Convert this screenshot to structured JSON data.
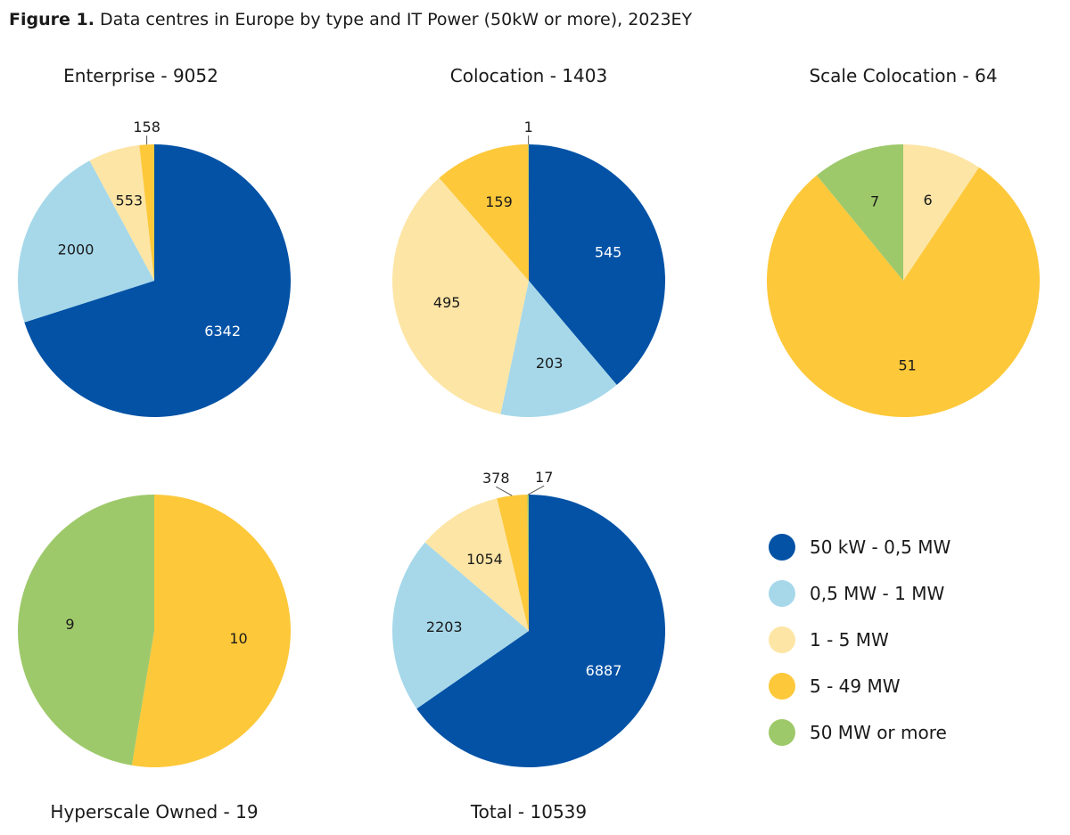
{
  "figure": {
    "number": "Figure 1.",
    "title": "Data centres in Europe by type and IT Power (50kW or more), 2023EY"
  },
  "legend": [
    {
      "label": "50 kW - 0,5 MW",
      "color": "#0352a6"
    },
    {
      "label": "0,5 MW - 1 MW",
      "color": "#a6d8ea"
    },
    {
      "label": "1 - 5 MW",
      "color": "#fde5a5"
    },
    {
      "label": "5 - 49 MW",
      "color": "#fdc83a"
    },
    {
      "label": "50 MW or more",
      "color": "#9ec96b"
    }
  ],
  "chart_data": [
    {
      "type": "pie",
      "title": "Enterprise - 9052",
      "categories": [
        "50 kW - 0,5 MW",
        "0,5 MW - 1 MW",
        "1 - 5 MW",
        "5 - 49 MW"
      ],
      "values": [
        6342,
        2000,
        553,
        158
      ],
      "labels": [
        "6342",
        "2000",
        "553",
        "158"
      ]
    },
    {
      "type": "pie",
      "title": "Colocation - 1403",
      "categories": [
        "50 kW - 0,5 MW",
        "0,5 MW - 1 MW",
        "1 - 5 MW",
        "5 - 49 MW",
        "50 MW or more"
      ],
      "values": [
        545,
        203,
        495,
        159,
        1
      ],
      "labels": [
        "545",
        "203",
        "495",
        "159",
        "1"
      ]
    },
    {
      "type": "pie",
      "title": "Scale Colocation - 64",
      "categories": [
        "1 - 5 MW",
        "5 - 49 MW",
        "50 MW or more"
      ],
      "values": [
        6,
        51,
        7
      ],
      "labels": [
        "6",
        "51",
        "7"
      ]
    },
    {
      "type": "pie",
      "title": "Hyperscale Owned - 19",
      "categories": [
        "5 - 49 MW",
        "50 MW or more"
      ],
      "values": [
        10,
        9
      ],
      "labels": [
        "10",
        "9"
      ]
    },
    {
      "type": "pie",
      "title": "Total - 10539",
      "categories": [
        "50 kW - 0,5 MW",
        "0,5 MW - 1 MW",
        "1 - 5 MW",
        "5 - 49 MW",
        "50 MW or more"
      ],
      "values": [
        6887,
        2203,
        1054,
        378,
        17
      ],
      "labels": [
        "6887",
        "2203",
        "1054",
        "378",
        "17"
      ]
    }
  ]
}
